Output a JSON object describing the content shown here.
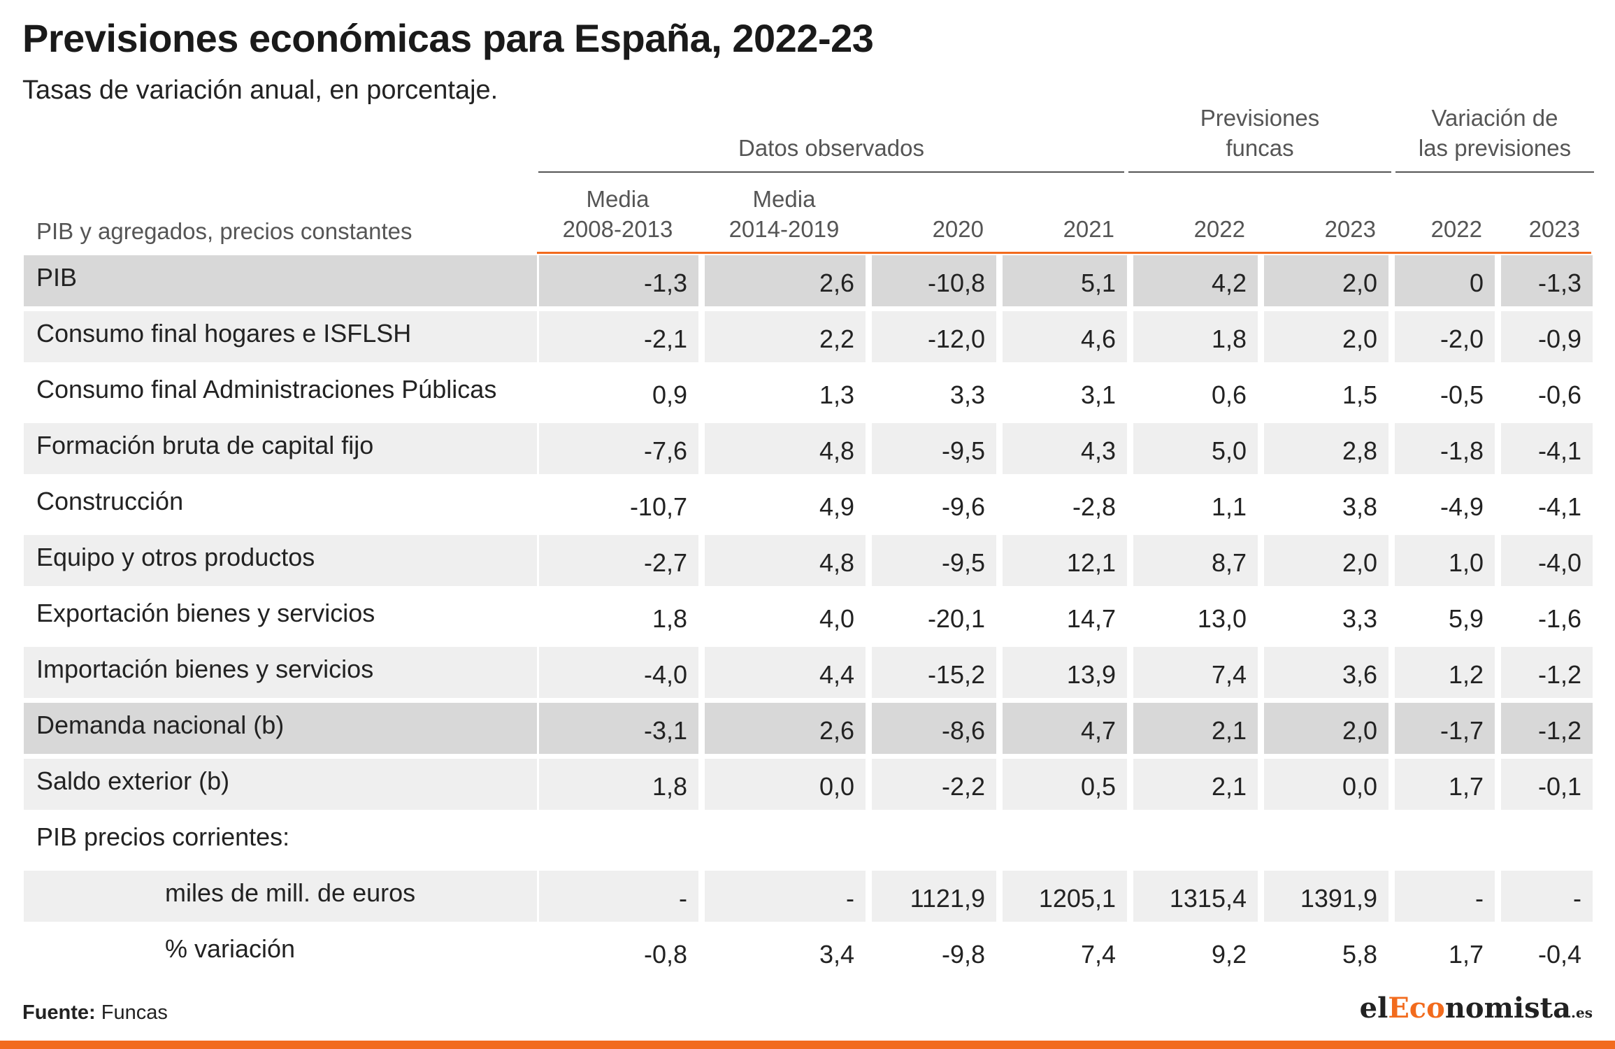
{
  "title": "Previsiones económicas para España, 2022-23",
  "subtitle": "Tasas de variación anual, en porcentaje.",
  "chart_data": {
    "type": "table",
    "row_header_label": "PIB y agregados, precios constantes",
    "column_groups": [
      {
        "label": "Datos observados",
        "span": 4
      },
      {
        "label_lines": [
          "Previsiones",
          "funcas"
        ],
        "span": 2
      },
      {
        "label_lines": [
          "Variación de",
          "las previsiones"
        ],
        "span": 2
      }
    ],
    "columns": [
      {
        "lines": [
          "Media",
          "2008-2013"
        ]
      },
      {
        "lines": [
          "Media",
          "2014-2019"
        ]
      },
      {
        "lines": [
          "2020"
        ]
      },
      {
        "lines": [
          "2021"
        ]
      },
      {
        "lines": [
          "2022"
        ]
      },
      {
        "lines": [
          "2023"
        ]
      },
      {
        "lines": [
          "2022"
        ]
      },
      {
        "lines": [
          "2023"
        ]
      }
    ],
    "rows": [
      {
        "label": "PIB",
        "values": [
          "-1,3",
          "2,6",
          "-10,8",
          "5,1",
          "4,2",
          "2,0",
          "0",
          "-1,3"
        ],
        "highlight": true,
        "indent": false
      },
      {
        "label": "Consumo final hogares e ISFLSH",
        "values": [
          "-2,1",
          "2,2",
          "-12,0",
          "4,6",
          "1,8",
          "2,0",
          "-2,0",
          "-0,9"
        ],
        "highlight": false,
        "indent": false
      },
      {
        "label": "Consumo final Administraciones Públicas",
        "values": [
          "0,9",
          "1,3",
          "3,3",
          "3,1",
          "0,6",
          "1,5",
          "-0,5",
          "-0,6"
        ],
        "highlight": false,
        "indent": false
      },
      {
        "label": "Formación bruta de capital fijo",
        "values": [
          "-7,6",
          "4,8",
          "-9,5",
          "4,3",
          "5,0",
          "2,8",
          "-1,8",
          "-4,1"
        ],
        "highlight": false,
        "indent": false
      },
      {
        "label": "Construcción",
        "values": [
          "-10,7",
          "4,9",
          "-9,6",
          "-2,8",
          "1,1",
          "3,8",
          "-4,9",
          "-4,1"
        ],
        "highlight": false,
        "indent": false
      },
      {
        "label": "Equipo y otros productos",
        "values": [
          "-2,7",
          "4,8",
          "-9,5",
          "12,1",
          "8,7",
          "2,0",
          "1,0",
          "-4,0"
        ],
        "highlight": false,
        "indent": false
      },
      {
        "label": "Exportación bienes y servicios",
        "values": [
          "1,8",
          "4,0",
          "-20,1",
          "14,7",
          "13,0",
          "3,3",
          "5,9",
          "-1,6"
        ],
        "highlight": false,
        "indent": false
      },
      {
        "label": "Importación bienes y servicios",
        "values": [
          "-4,0",
          "4,4",
          "-15,2",
          "13,9",
          "7,4",
          "3,6",
          "1,2",
          "-1,2"
        ],
        "highlight": false,
        "indent": false
      },
      {
        "label": "Demanda nacional (b)",
        "values": [
          "-3,1",
          "2,6",
          "-8,6",
          "4,7",
          "2,1",
          "2,0",
          "-1,7",
          "-1,2"
        ],
        "highlight": true,
        "indent": false
      },
      {
        "label": "Saldo exterior (b)",
        "values": [
          "1,8",
          "0,0",
          "-2,2",
          "0,5",
          "2,1",
          "0,0",
          "1,7",
          "-0,1"
        ],
        "highlight": false,
        "indent": false
      },
      {
        "label": "PIB precios corrientes:",
        "values": [
          "",
          "",
          "",
          "",
          "",
          "",
          "",
          ""
        ],
        "highlight": false,
        "indent": false
      },
      {
        "label": "miles de mill. de euros",
        "values": [
          "-",
          "-",
          "1121,9",
          "1205,1",
          "1315,4",
          "1391,9",
          "-",
          "-"
        ],
        "highlight": false,
        "indent": true
      },
      {
        "label": "% variación",
        "values": [
          "-0,8",
          "3,4",
          "-9,8",
          "7,4",
          "9,2",
          "5,8",
          "1,7",
          "-0,4"
        ],
        "highlight": false,
        "indent": true
      }
    ]
  },
  "footer": {
    "source_label": "Fuente:",
    "source_value": " Funcas"
  },
  "brand": {
    "prefix": "el",
    "accent": "Eco",
    "rest": "nomista",
    "suffix": ".es"
  },
  "colors": {
    "accent": "#f26b1d",
    "highlight_row": "#d8d8d8",
    "stripe_row": "#efefef",
    "plain_row": "#ffffff"
  }
}
